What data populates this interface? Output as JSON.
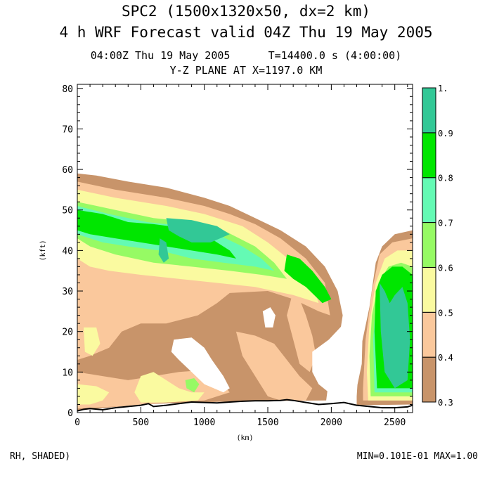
{
  "header": {
    "title_line1": "SPC2 (1500x1320x50, dx=2 km)",
    "title_line2": "4 h WRF Forecast valid 04Z Thu 19 May 2005",
    "subtitle_line1": "04:00Z Thu 19 May 2005      T=14400.0 s (4:00:00)",
    "subtitle_line2": "Y-Z PLANE AT X=1197.0 KM"
  },
  "footer": {
    "variable_label": "RH, SHADED)",
    "min_max": "MIN=0.101E-01 MAX=1.00"
  },
  "chart_data": {
    "type": "heatmap",
    "title": "Y-Z PLANE AT X=1197.0 KM",
    "xlabel": "(km)",
    "ylabel": "(kft)",
    "xlim": [
      0,
      2640
    ],
    "ylim": [
      0,
      81
    ],
    "x_ticks": [
      0,
      500,
      1000,
      1500,
      2000,
      2500
    ],
    "y_ticks": [
      0,
      10,
      20,
      30,
      40,
      50,
      60,
      70,
      80
    ],
    "colorbar": {
      "levels": [
        0.3,
        0.4,
        0.5,
        0.6,
        0.7,
        0.8,
        0.9,
        1.0
      ],
      "labels": [
        "0.3",
        "0.4",
        "0.5",
        "0.6",
        "0.7",
        "0.8",
        "0.9",
        "1."
      ],
      "colors": [
        "#c8946a",
        "#fac89c",
        "#fafaa0",
        "#96fa64",
        "#64fab4",
        "#00e600",
        "#32c896"
      ]
    },
    "terrain": [
      [
        0,
        0.4
      ],
      [
        50,
        0.8
      ],
      [
        100,
        1.0
      ],
      [
        200,
        0.7
      ],
      [
        300,
        1.2
      ],
      [
        400,
        1.5
      ],
      [
        500,
        1.8
      ],
      [
        560,
        2.2
      ],
      [
        600,
        1.5
      ],
      [
        700,
        1.8
      ],
      [
        800,
        2.2
      ],
      [
        900,
        2.6
      ],
      [
        1000,
        2.5
      ],
      [
        1100,
        2.4
      ],
      [
        1200,
        2.6
      ],
      [
        1300,
        2.8
      ],
      [
        1400,
        2.9
      ],
      [
        1500,
        2.9
      ],
      [
        1600,
        3.0
      ],
      [
        1650,
        3.2
      ],
      [
        1700,
        3.0
      ],
      [
        1800,
        2.5
      ],
      [
        1900,
        2.0
      ],
      [
        2000,
        2.2
      ],
      [
        2100,
        2.5
      ],
      [
        2200,
        1.8
      ],
      [
        2300,
        1.5
      ],
      [
        2400,
        1.2
      ],
      [
        2500,
        1.2
      ],
      [
        2600,
        1.4
      ],
      [
        2640,
        1.8
      ]
    ],
    "regions": [
      {
        "level": 0,
        "pts": [
          [
            0,
            59
          ],
          [
            150,
            58.5
          ],
          [
            400,
            57
          ],
          [
            700,
            55.5
          ],
          [
            1000,
            53
          ],
          [
            1200,
            51
          ],
          [
            1400,
            48
          ],
          [
            1600,
            45
          ],
          [
            1800,
            41
          ],
          [
            1950,
            36
          ],
          [
            2050,
            30
          ],
          [
            2090,
            24
          ],
          [
            2050,
            16
          ],
          [
            2000,
            13
          ],
          [
            1960,
            3
          ],
          [
            1300,
            2.8
          ],
          [
            800,
            2.4
          ],
          [
            500,
            2
          ],
          [
            0,
            0.5
          ]
        ]
      },
      {
        "level": 0,
        "pts": [
          [
            2200,
            4
          ],
          [
            2220,
            14
          ],
          [
            2300,
            26
          ],
          [
            2350,
            37
          ],
          [
            2400,
            41
          ],
          [
            2500,
            44
          ],
          [
            2640,
            45
          ],
          [
            2640,
            2
          ],
          [
            2200,
            1.8
          ]
        ]
      },
      {
        "level": 1,
        "pts": [
          [
            0,
            57
          ],
          [
            300,
            55
          ],
          [
            700,
            53
          ],
          [
            1000,
            51
          ],
          [
            1200,
            49
          ],
          [
            1400,
            46.5
          ],
          [
            1600,
            43
          ],
          [
            1800,
            38
          ],
          [
            1950,
            32
          ],
          [
            1990,
            24
          ],
          [
            1900,
            25
          ],
          [
            1700,
            28
          ],
          [
            1500,
            30
          ],
          [
            1200,
            29.5
          ],
          [
            1100,
            27
          ],
          [
            950,
            24
          ],
          [
            700,
            22
          ],
          [
            500,
            22
          ],
          [
            350,
            20
          ],
          [
            250,
            16
          ],
          [
            100,
            14
          ],
          [
            0,
            13
          ]
        ]
      },
      {
        "level": 1,
        "pts": [
          [
            0,
            10
          ],
          [
            200,
            9
          ],
          [
            400,
            8
          ],
          [
            600,
            9
          ],
          [
            800,
            10
          ],
          [
            1000,
            10.5
          ],
          [
            1100,
            9
          ],
          [
            1200,
            5
          ],
          [
            1000,
            3
          ],
          [
            700,
            2.5
          ],
          [
            300,
            1.5
          ],
          [
            0,
            1
          ]
        ]
      },
      {
        "level": 1,
        "pts": [
          [
            1250,
            20
          ],
          [
            1400,
            19
          ],
          [
            1550,
            17
          ],
          [
            1650,
            13
          ],
          [
            1750,
            9
          ],
          [
            1850,
            6
          ],
          [
            1800,
            3
          ],
          [
            1600,
            3
          ],
          [
            1500,
            4
          ],
          [
            1400,
            9
          ],
          [
            1300,
            14
          ]
        ]
      },
      {
        "level": 1,
        "pts": [
          [
            1700,
            30
          ],
          [
            1750,
            28
          ],
          [
            1800,
            24
          ],
          [
            1850,
            19
          ],
          [
            1880,
            14
          ],
          [
            1830,
            10
          ],
          [
            1750,
            12
          ],
          [
            1700,
            18
          ],
          [
            1650,
            24
          ]
        ]
      },
      {
        "level": 1,
        "pts": [
          [
            2250,
            6
          ],
          [
            2270,
            18
          ],
          [
            2320,
            30
          ],
          [
            2380,
            39
          ],
          [
            2480,
            42
          ],
          [
            2640,
            43
          ],
          [
            2640,
            3
          ],
          [
            2250,
            3
          ]
        ]
      },
      {
        "level": 2,
        "pts": [
          [
            0,
            55
          ],
          [
            300,
            53
          ],
          [
            700,
            51
          ],
          [
            1000,
            49
          ],
          [
            1300,
            46
          ],
          [
            1500,
            42
          ],
          [
            1700,
            37
          ],
          [
            1850,
            32
          ],
          [
            1900,
            27
          ],
          [
            1700,
            29
          ],
          [
            1400,
            31
          ],
          [
            1100,
            32
          ],
          [
            800,
            33
          ],
          [
            500,
            34
          ],
          [
            250,
            35
          ],
          [
            100,
            36
          ],
          [
            0,
            38
          ]
        ]
      },
      {
        "level": 2,
        "pts": [
          [
            50,
            21
          ],
          [
            150,
            21
          ],
          [
            180,
            17
          ],
          [
            120,
            14
          ],
          [
            60,
            15
          ]
        ]
      },
      {
        "level": 2,
        "pts": [
          [
            500,
            9
          ],
          [
            600,
            10
          ],
          [
            700,
            8
          ],
          [
            800,
            6
          ],
          [
            900,
            5
          ],
          [
            1000,
            5
          ],
          [
            950,
            3
          ],
          [
            700,
            2.5
          ],
          [
            500,
            2.5
          ],
          [
            450,
            5
          ]
        ]
      },
      {
        "level": 2,
        "pts": [
          [
            0,
            7
          ],
          [
            150,
            6.5
          ],
          [
            250,
            5
          ],
          [
            200,
            3
          ],
          [
            100,
            2
          ],
          [
            0,
            2
          ]
        ]
      },
      {
        "level": 2,
        "pts": [
          [
            2280,
            10
          ],
          [
            2300,
            22
          ],
          [
            2350,
            32
          ],
          [
            2420,
            38
          ],
          [
            2520,
            40
          ],
          [
            2640,
            40
          ],
          [
            2640,
            3
          ],
          [
            2290,
            3
          ]
        ]
      },
      {
        "level": 3,
        "pts": [
          [
            0,
            52
          ],
          [
            300,
            50
          ],
          [
            600,
            48
          ],
          [
            900,
            47
          ],
          [
            1150,
            45
          ],
          [
            1400,
            41
          ],
          [
            1550,
            37
          ],
          [
            1650,
            33
          ],
          [
            1450,
            34
          ],
          [
            1200,
            35
          ],
          [
            900,
            36
          ],
          [
            600,
            37
          ],
          [
            300,
            39
          ],
          [
            100,
            41
          ],
          [
            0,
            43
          ]
        ]
      },
      {
        "level": 3,
        "pts": [
          [
            850,
            8
          ],
          [
            920,
            8.5
          ],
          [
            960,
            7
          ],
          [
            920,
            5
          ],
          [
            860,
            6
          ]
        ]
      },
      {
        "level": 3,
        "pts": [
          [
            2300,
            14
          ],
          [
            2320,
            24
          ],
          [
            2370,
            32
          ],
          [
            2450,
            36
          ],
          [
            2550,
            37
          ],
          [
            2640,
            36
          ],
          [
            2640,
            4
          ],
          [
            2310,
            4
          ]
        ]
      },
      {
        "level": 4,
        "pts": [
          [
            0,
            51
          ],
          [
            250,
            49
          ],
          [
            550,
            47
          ],
          [
            850,
            46
          ],
          [
            1100,
            44
          ],
          [
            1300,
            41
          ],
          [
            1450,
            38
          ],
          [
            1550,
            35
          ],
          [
            1400,
            36
          ],
          [
            1150,
            37
          ],
          [
            900,
            38
          ],
          [
            650,
            40
          ],
          [
            400,
            41
          ],
          [
            200,
            42
          ],
          [
            0,
            44
          ]
        ]
      },
      {
        "level": 4,
        "pts": [
          [
            2330,
            18
          ],
          [
            2350,
            27
          ],
          [
            2400,
            32
          ],
          [
            2480,
            35
          ],
          [
            2560,
            35
          ],
          [
            2640,
            34
          ],
          [
            2640,
            5
          ],
          [
            2340,
            5
          ]
        ]
      },
      {
        "level": 5,
        "pts": [
          [
            0,
            50
          ],
          [
            200,
            49
          ],
          [
            400,
            47
          ],
          [
            600,
            46.5
          ],
          [
            850,
            45.5
          ],
          [
            1050,
            43
          ],
          [
            1200,
            40
          ],
          [
            1250,
            38
          ],
          [
            1100,
            39
          ],
          [
            900,
            40
          ],
          [
            700,
            41
          ],
          [
            500,
            42
          ],
          [
            300,
            43
          ],
          [
            100,
            44
          ],
          [
            0,
            45
          ]
        ]
      },
      {
        "level": 5,
        "pts": [
          [
            1650,
            39
          ],
          [
            1750,
            38
          ],
          [
            1850,
            35
          ],
          [
            1950,
            31
          ],
          [
            2000,
            28
          ],
          [
            1930,
            27
          ],
          [
            1800,
            31
          ],
          [
            1700,
            33
          ],
          [
            1630,
            35
          ]
        ]
      },
      {
        "level": 5,
        "pts": [
          [
            2350,
            30
          ],
          [
            2400,
            34
          ],
          [
            2480,
            36
          ],
          [
            2560,
            36
          ],
          [
            2640,
            34
          ],
          [
            2640,
            6
          ],
          [
            2360,
            6
          ],
          [
            2340,
            20
          ]
        ]
      },
      {
        "level": 6,
        "pts": [
          [
            700,
            48
          ],
          [
            900,
            47.5
          ],
          [
            1100,
            46
          ],
          [
            1200,
            44
          ],
          [
            1050,
            42
          ],
          [
            900,
            42
          ],
          [
            800,
            43.5
          ],
          [
            720,
            45
          ]
        ]
      },
      {
        "level": 6,
        "pts": [
          [
            650,
            43
          ],
          [
            700,
            42
          ],
          [
            720,
            38
          ],
          [
            680,
            37
          ],
          [
            640,
            39
          ]
        ]
      },
      {
        "level": 6,
        "pts": [
          [
            2380,
            32
          ],
          [
            2420,
            30
          ],
          [
            2460,
            27
          ],
          [
            2500,
            29
          ],
          [
            2560,
            31
          ],
          [
            2600,
            27
          ],
          [
            2620,
            18
          ],
          [
            2600,
            8
          ],
          [
            2500,
            6
          ],
          [
            2420,
            10
          ],
          [
            2390,
            20
          ]
        ]
      }
    ],
    "white_regions": [
      {
        "pts": [
          [
            760,
            18
          ],
          [
            900,
            18.5
          ],
          [
            1000,
            16
          ],
          [
            1060,
            13
          ],
          [
            1150,
            9
          ],
          [
            1200,
            6
          ],
          [
            1150,
            5
          ],
          [
            1000,
            7
          ],
          [
            900,
            10
          ],
          [
            800,
            13
          ],
          [
            740,
            15
          ]
        ]
      },
      {
        "pts": [
          [
            1460,
            25
          ],
          [
            1520,
            26
          ],
          [
            1560,
            24
          ],
          [
            1540,
            21
          ],
          [
            1480,
            21
          ]
        ]
      },
      {
        "pts": [
          [
            1850,
            15
          ],
          [
            1980,
            18
          ],
          [
            2100,
            22
          ],
          [
            2160,
            27
          ],
          [
            2200,
            30
          ],
          [
            2260,
            36
          ],
          [
            2240,
            12
          ],
          [
            2200,
            6
          ],
          [
            2100,
            5
          ],
          [
            1980,
            5
          ],
          [
            1900,
            7
          ],
          [
            1850,
            10
          ]
        ]
      }
    ]
  }
}
